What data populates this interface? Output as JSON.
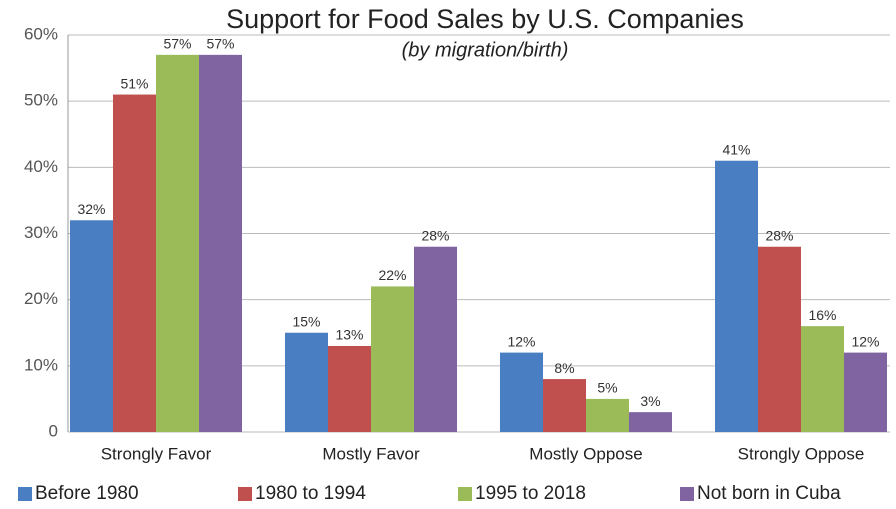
{
  "chart_data": {
    "type": "bar",
    "title": "Support for Food Sales by U.S. Companies",
    "subtitle": "(by migration/birth)",
    "categories": [
      "Strongly Favor",
      "Mostly Favor",
      "Mostly Oppose",
      "Strongly Oppose"
    ],
    "series": [
      {
        "name": "Before 1980",
        "color": "#4a7ec2",
        "values": [
          32,
          15,
          12,
          41
        ],
        "value_labels": [
          "32%",
          "15%",
          "12%",
          "41%"
        ]
      },
      {
        "name": "1980 to 1994",
        "color": "#c0504d",
        "values": [
          51,
          13,
          8,
          28
        ],
        "value_labels": [
          "51%",
          "13%",
          "8%",
          "28%"
        ]
      },
      {
        "name": "1995 to 2018",
        "color": "#9bbb59",
        "values": [
          57,
          22,
          5,
          16
        ],
        "value_labels": [
          "57%",
          "22%",
          "5%",
          "16%"
        ]
      },
      {
        "name": "Not born in Cuba",
        "color": "#8064a2",
        "values": [
          57,
          28,
          3,
          12
        ],
        "value_labels": [
          "57%",
          "28%",
          "3%",
          "12%"
        ]
      }
    ],
    "ylim": [
      0,
      60
    ],
    "yticks": [
      0,
      {
        "value": 10,
        "label": "10%"
      },
      {
        "value": 20,
        "label": "20%"
      },
      {
        "value": 30,
        "label": "30%"
      },
      {
        "value": 40,
        "label": "40%"
      },
      {
        "value": 50,
        "label": "50%"
      },
      {
        "value": 60,
        "label": "60%"
      }
    ],
    "grid": true,
    "legend": "bottom"
  }
}
